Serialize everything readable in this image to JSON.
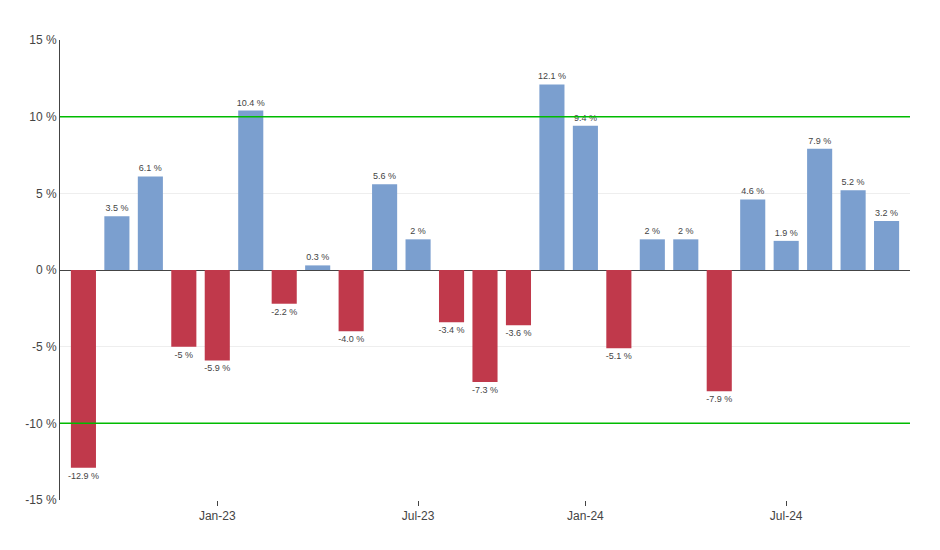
{
  "chart_data": {
    "type": "bar",
    "categories": [
      null,
      null,
      null,
      null,
      "Jan-23",
      null,
      null,
      null,
      null,
      null,
      "Jul-23",
      null,
      null,
      null,
      null,
      "Jan-24",
      null,
      null,
      null,
      null,
      null,
      "Jul-24",
      null,
      null,
      null
    ],
    "values": [
      -12.9,
      3.5,
      6.1,
      -5.0,
      -5.9,
      10.4,
      -2.2,
      0.3,
      -4.0,
      5.6,
      2.0,
      -3.4,
      -7.3,
      -3.6,
      12.1,
      9.4,
      -5.1,
      2.0,
      2.0,
      -7.9,
      4.6,
      1.9,
      7.9,
      5.2,
      3.2
    ],
    "value_labels": [
      "-12.9 %",
      "3.5 %",
      "6.1 %",
      "-5 %",
      "-5.9 %",
      "10.4 %",
      "-2.2 %",
      "0.3 %",
      "-4.0 %",
      "5.6 %",
      "2 %",
      "-3.4 %",
      "-7.3 %",
      "-3.6 %",
      "12.1 %",
      "9.4 %",
      "-5.1 %",
      "2 %",
      "2 %",
      "-7.9 %",
      "4.6 %",
      "1.9 %",
      "7.9 %",
      "5.2 %",
      "3.2 %"
    ],
    "colors": [
      "#c0394b",
      "#7b9fcf",
      "#7b9fcf",
      "#c0394b",
      "#c0394b",
      "#7b9fcf",
      "#c0394b",
      "#7b9fcf",
      "#c0394b",
      "#7b9fcf",
      "#7b9fcf",
      "#c0394b",
      "#c0394b",
      "#c0394b",
      "#7b9fcf",
      "#7b9fcf",
      "#c0394b",
      "#7b9fcf",
      "#7b9fcf",
      "#c0394b",
      "#7b9fcf",
      "#7b9fcf",
      "#7b9fcf",
      "#7b9fcf",
      "#7b9fcf"
    ],
    "reference_lines": [
      {
        "value": 10,
        "color": "#00bb00"
      },
      {
        "value": -10,
        "color": "#00bb00"
      }
    ],
    "ylim": [
      -15,
      15
    ],
    "yticks": [
      {
        "value": -15,
        "label": "-15 %"
      },
      {
        "value": -10,
        "label": "-10 %"
      },
      {
        "value": -5,
        "label": "-5 %"
      },
      {
        "value": 0,
        "label": "0 %"
      },
      {
        "value": 5,
        "label": "5 %"
      },
      {
        "value": 10,
        "label": "10 %"
      },
      {
        "value": 15,
        "label": "15 %"
      }
    ],
    "grid": true,
    "data_labels": true
  }
}
